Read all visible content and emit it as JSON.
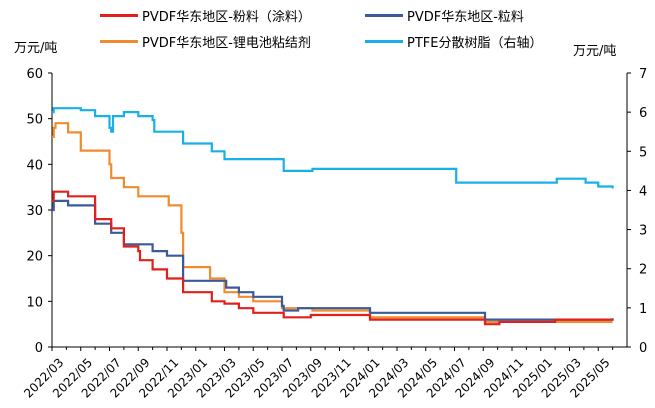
{
  "chart_data": {
    "type": "line",
    "y_unit_left": "万元/吨",
    "y_unit_right": "万元/吨",
    "ylim_left": [
      0,
      60
    ],
    "yticks_left": [
      "0",
      "10",
      "20",
      "30",
      "40",
      "50",
      "60"
    ],
    "ylim_right": [
      0,
      7
    ],
    "yticks_right": [
      "0",
      "1",
      "2",
      "3",
      "4",
      "5",
      "6",
      "7"
    ],
    "grid": false,
    "legend_position": "top",
    "x_tick_labels": [
      "2022/03",
      "2022/05",
      "2022/07",
      "2022/09",
      "2022/11",
      "2023/01",
      "2023/03",
      "2023/05",
      "2023/07",
      "2023/09",
      "2023/11",
      "2024/01",
      "2024/03",
      "2024/05",
      "2024/07",
      "2024/09",
      "2024/11",
      "2025/01",
      "2025/03",
      "2025/05"
    ],
    "series": [
      {
        "name": "PVDF华东地区-粉料（涂料）",
        "color": "#e0201b",
        "axis": "left",
        "points": [
          [
            "2022/03",
            32
          ],
          [
            "2022/03",
            34
          ],
          [
            "2022/04",
            34
          ],
          [
            "2022/04",
            33
          ],
          [
            "2022/05",
            33
          ],
          [
            "2022/06",
            28
          ],
          [
            "2022/07",
            28
          ],
          [
            "2022/07",
            26
          ],
          [
            "2022/08",
            22
          ],
          [
            "2022/09",
            21
          ],
          [
            "2022/09",
            19
          ],
          [
            "2022/10",
            17
          ],
          [
            "2022/11",
            15
          ],
          [
            "2022/12",
            15
          ],
          [
            "2022/12",
            12
          ],
          [
            "2023/02",
            12
          ],
          [
            "2023/02",
            10
          ],
          [
            "2023/03",
            9.5
          ],
          [
            "2023/04",
            8.5
          ],
          [
            "2023/05",
            7.5
          ],
          [
            "2023/07",
            7.5
          ],
          [
            "2023/07",
            6.5
          ],
          [
            "2023/08",
            6.5
          ],
          [
            "2023/09",
            7
          ],
          [
            "2024/01",
            7
          ],
          [
            "2024/01",
            6
          ],
          [
            "2024/09",
            6
          ],
          [
            "2024/09",
            5
          ],
          [
            "2024/10",
            5
          ],
          [
            "2024/10",
            5.5
          ],
          [
            "2025/01",
            5.5
          ],
          [
            "2025/02",
            6
          ],
          [
            "2025/06",
            6
          ]
        ]
      },
      {
        "name": "PVDF华东地区-粒料",
        "color": "#3b5a9b",
        "axis": "left",
        "points": [
          [
            "2022/03",
            30
          ],
          [
            "2022/03",
            32
          ],
          [
            "2022/04",
            32
          ],
          [
            "2022/04",
            31
          ],
          [
            "2022/05",
            31
          ],
          [
            "2022/06",
            27
          ],
          [
            "2022/07",
            27
          ],
          [
            "2022/07",
            25
          ],
          [
            "2022/08",
            22.5
          ],
          [
            "2022/09",
            22.5
          ],
          [
            "2022/10",
            21
          ],
          [
            "2022/11",
            20
          ],
          [
            "2022/12",
            20
          ],
          [
            "2022/12",
            14.5
          ],
          [
            "2023/03",
            14.5
          ],
          [
            "2023/03",
            13
          ],
          [
            "2023/04",
            12
          ],
          [
            "2023/05",
            11
          ],
          [
            "2023/06",
            11
          ],
          [
            "2023/07",
            9
          ],
          [
            "2023/07",
            8
          ],
          [
            "2023/08",
            8
          ],
          [
            "2023/08",
            8.5
          ],
          [
            "2024/01",
            8.5
          ],
          [
            "2024/01",
            7.5
          ],
          [
            "2024/09",
            7.5
          ],
          [
            "2024/09",
            6
          ],
          [
            "2025/06",
            6.3
          ]
        ]
      },
      {
        "name": "PVDF华东地区-锂电池粘结剂",
        "color": "#f08c2f",
        "axis": "left",
        "points": [
          [
            "2022/03",
            46
          ],
          [
            "2022/03",
            48
          ],
          [
            "2022/03",
            49
          ],
          [
            "2022/04",
            49
          ],
          [
            "2022/04",
            47
          ],
          [
            "2022/05",
            43
          ],
          [
            "2022/06",
            43
          ],
          [
            "2022/07",
            40
          ],
          [
            "2022/07",
            37
          ],
          [
            "2022/08",
            35
          ],
          [
            "2022/09",
            33
          ],
          [
            "2022/11",
            33
          ],
          [
            "2022/11",
            31
          ],
          [
            "2022/12",
            25
          ],
          [
            "2022/12",
            17.5
          ],
          [
            "2023/01",
            17.5
          ],
          [
            "2023/02",
            15
          ],
          [
            "2023/03",
            12
          ],
          [
            "2023/04",
            11
          ],
          [
            "2023/05",
            10
          ],
          [
            "2023/06",
            10
          ],
          [
            "2023/07",
            8.5
          ],
          [
            "2023/09",
            8.5
          ],
          [
            "2023/09",
            8
          ],
          [
            "2024/01",
            8
          ],
          [
            "2024/01",
            6.5
          ],
          [
            "2024/09",
            6.5
          ],
          [
            "2024/09",
            5.5
          ],
          [
            "2025/06",
            5.5
          ]
        ]
      },
      {
        "name": "PTFE分散树脂（右轴）",
        "color": "#19b0e8",
        "axis": "right",
        "points": [
          [
            "2022/03",
            6
          ],
          [
            "2022/03",
            6.1
          ],
          [
            "2022/04",
            6.1
          ],
          [
            "2022/05",
            6.05
          ],
          [
            "2022/06",
            5.9
          ],
          [
            "2022/07",
            5.6
          ],
          [
            "2022/07",
            5.5
          ],
          [
            "2022/07",
            5.9
          ],
          [
            "2022/08",
            6
          ],
          [
            "2022/09",
            5.9
          ],
          [
            "2022/10",
            5.8
          ],
          [
            "2022/10",
            5.5
          ],
          [
            "2022/12",
            5.5
          ],
          [
            "2022/12",
            5.2
          ],
          [
            "2023/02",
            5.2
          ],
          [
            "2023/02",
            5
          ],
          [
            "2023/03",
            4.8
          ],
          [
            "2023/07",
            4.8
          ],
          [
            "2023/07",
            4.5
          ],
          [
            "2023/09",
            4.5
          ],
          [
            "2023/09",
            4.55
          ],
          [
            "2024/07",
            4.55
          ],
          [
            "2024/07",
            4.2
          ],
          [
            "2025/02",
            4.2
          ],
          [
            "2025/02",
            4.3
          ],
          [
            "2025/04",
            4.3
          ],
          [
            "2025/04",
            4.2
          ],
          [
            "2025/05",
            4.1
          ],
          [
            "2025/06",
            4.05
          ]
        ]
      }
    ]
  }
}
